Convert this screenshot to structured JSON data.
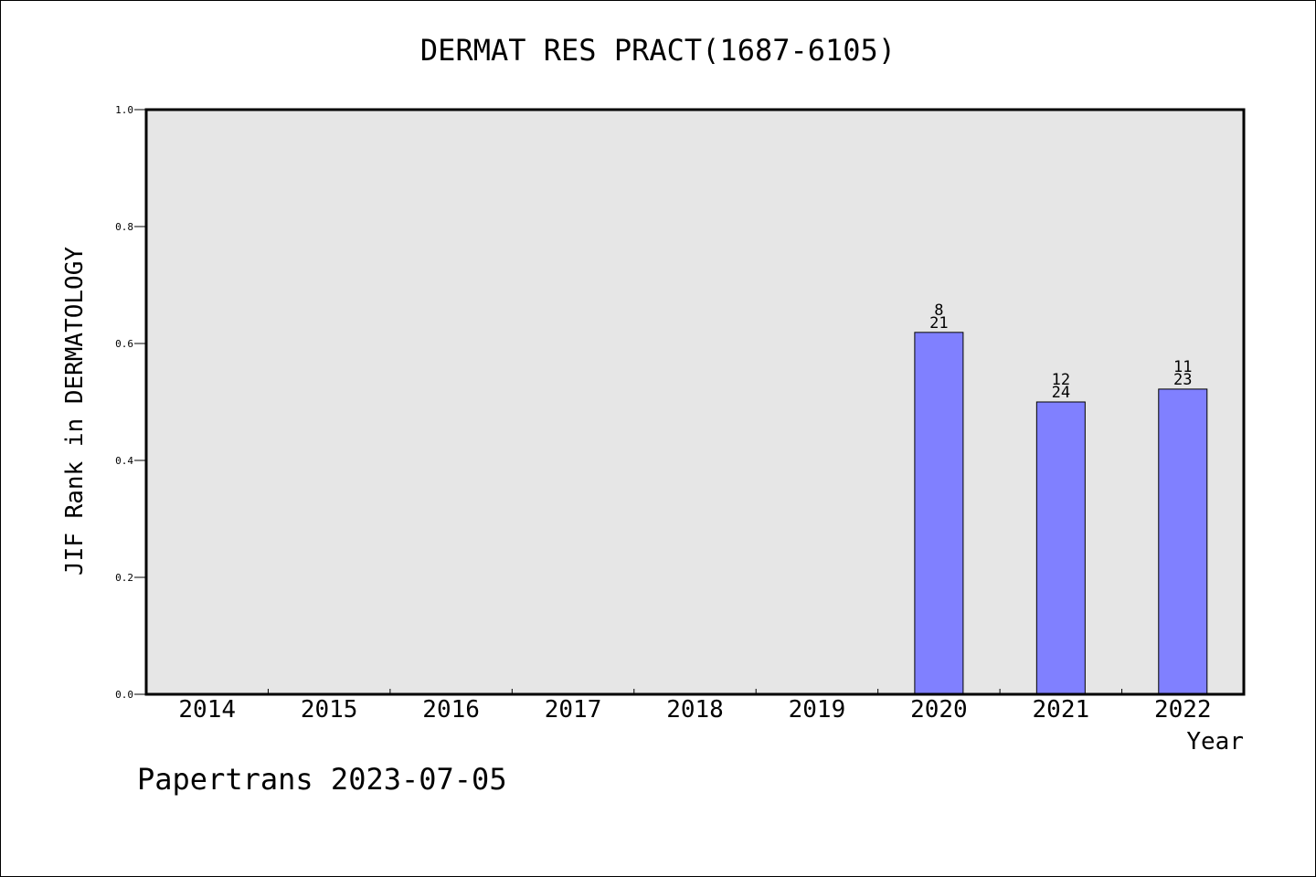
{
  "chart_data": {
    "type": "bar",
    "title": "DERMAT RES PRACT(1687-6105)",
    "xlabel": "Year",
    "ylabel": "JIF Rank in DERMATOLOGY",
    "ylim": [
      0,
      1.0
    ],
    "yticks": [
      "0.0",
      "0.2",
      "0.4",
      "0.6",
      "0.8",
      "1.0"
    ],
    "categories": [
      "2014",
      "2015",
      "2016",
      "2017",
      "2018",
      "2019",
      "2020",
      "2021",
      "2022"
    ],
    "values": [
      null,
      null,
      null,
      null,
      null,
      null,
      0.619,
      0.5,
      0.522
    ],
    "bar_labels": [
      null,
      null,
      null,
      null,
      null,
      null,
      {
        "top": "8",
        "bottom": "21"
      },
      {
        "top": "12",
        "bottom": "24"
      },
      {
        "top": "11",
        "bottom": "23"
      }
    ],
    "grid": false,
    "colors": {
      "bar_fill": "#8080ff",
      "plot_background": "#e6e6e6",
      "axis": "#000000"
    }
  },
  "footer": {
    "note": "Papertrans 2023-07-05"
  }
}
